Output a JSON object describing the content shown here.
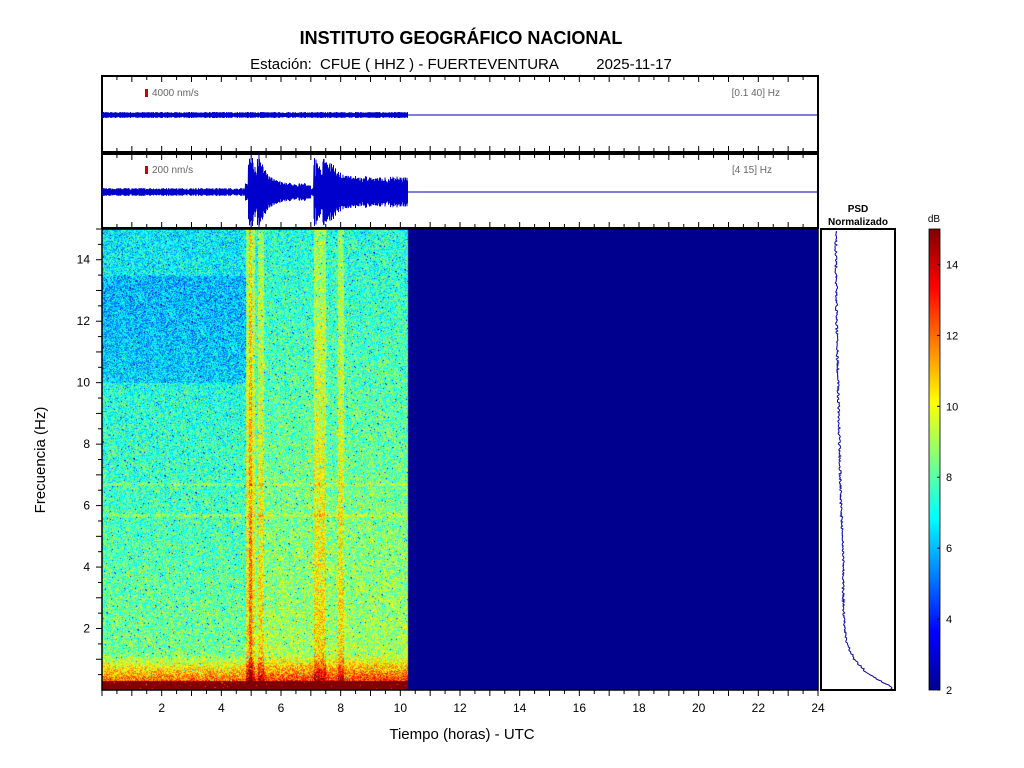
{
  "header": {
    "title": "INSTITUTO GEOGRÁFICO NACIONAL",
    "station_prefix": "Estación:",
    "station": "CFUE ( HHZ ) - FUERTEVENTURA",
    "date": "2025-11-17"
  },
  "chart_data": [
    {
      "type": "line",
      "panel": "seismogram-broadband",
      "scale_label": "4000 nm/s",
      "band_label": "[0.1 40] Hz",
      "data_end_hour": 10.25
    },
    {
      "type": "line",
      "panel": "seismogram-filtered",
      "scale_label": "200 nm/s",
      "band_label": "[4 15] Hz",
      "data_end_hour": 10.25,
      "bursts_hours": [
        5.0,
        5.3,
        7.2,
        7.5
      ]
    },
    {
      "type": "heatmap",
      "panel": "spectrogram",
      "xlabel": "Tiempo (horas) - UTC",
      "ylabel": "Frecuencia  (Hz)",
      "xlim": [
        0,
        24
      ],
      "ylim": [
        0,
        15
      ],
      "x_ticks": [
        2,
        4,
        6,
        8,
        10,
        12,
        14,
        16,
        18,
        20,
        22,
        24
      ],
      "y_ticks": [
        2,
        4,
        6,
        8,
        10,
        12,
        14
      ],
      "data_end_hour": 10.25,
      "colorbar": {
        "label": "dB",
        "range": [
          2,
          15
        ],
        "ticks": [
          2,
          4,
          6,
          8,
          10,
          12,
          14
        ]
      }
    },
    {
      "type": "line",
      "panel": "psd",
      "title_line1": "PSD",
      "title_line2": "Normalizado",
      "profile": [
        {
          "f": 0.1,
          "v": 0.95
        },
        {
          "f": 0.3,
          "v": 0.8
        },
        {
          "f": 0.6,
          "v": 0.6
        },
        {
          "f": 1.0,
          "v": 0.45
        },
        {
          "f": 1.5,
          "v": 0.35
        },
        {
          "f": 2.0,
          "v": 0.32
        },
        {
          "f": 3.0,
          "v": 0.3
        },
        {
          "f": 4.0,
          "v": 0.3
        },
        {
          "f": 5.0,
          "v": 0.29
        },
        {
          "f": 6.0,
          "v": 0.27
        },
        {
          "f": 7.0,
          "v": 0.26
        },
        {
          "f": 8.0,
          "v": 0.25
        },
        {
          "f": 9.0,
          "v": 0.24
        },
        {
          "f": 10.0,
          "v": 0.23
        },
        {
          "f": 11.0,
          "v": 0.22
        },
        {
          "f": 12.0,
          "v": 0.21
        },
        {
          "f": 13.0,
          "v": 0.21
        },
        {
          "f": 14.0,
          "v": 0.2
        },
        {
          "f": 15.0,
          "v": 0.2
        }
      ]
    }
  ]
}
